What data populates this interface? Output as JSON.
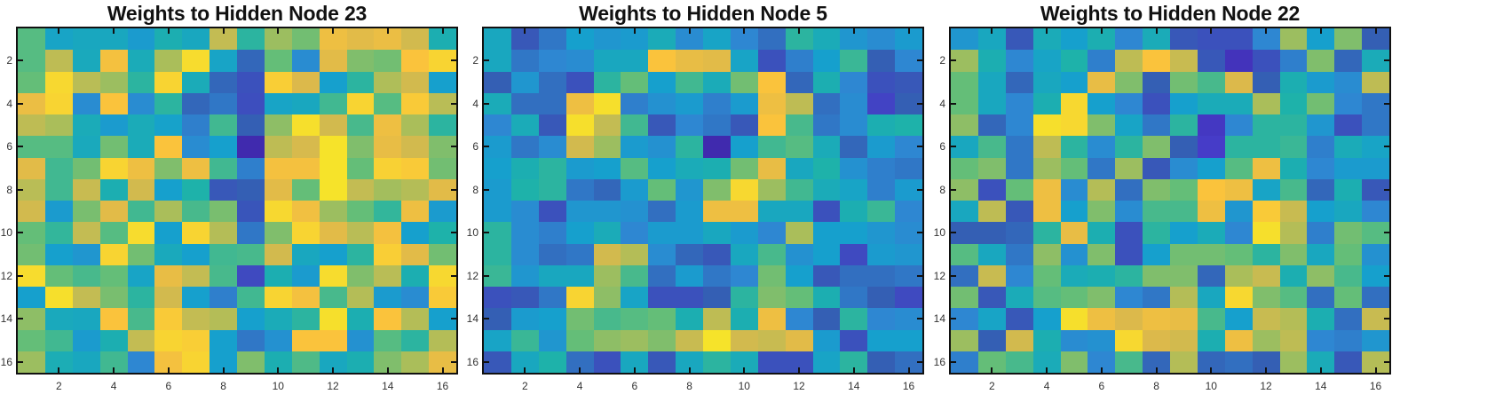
{
  "chart_data": [
    {
      "type": "heatmap",
      "title": "Weights to Hidden Node 23",
      "xlabel": "",
      "ylabel": "",
      "x_ticks": [
        2,
        4,
        6,
        8,
        10,
        12,
        14,
        16
      ],
      "y_ticks": [
        2,
        4,
        6,
        8,
        10,
        12,
        14,
        16
      ],
      "rows": 16,
      "cols": 16,
      "colormap": "parula",
      "value_range": [
        0,
        1
      ],
      "note": "Values are approximate visual estimates mapped to a 0-1 parula scale.",
      "values": [
        [
          0.58,
          0.42,
          0.44,
          0.44,
          0.38,
          0.48,
          0.44,
          0.75,
          0.52,
          0.68,
          0.62,
          0.86,
          0.82,
          0.85,
          0.78,
          0.48
        ],
        [
          0.58,
          0.74,
          0.45,
          0.88,
          0.46,
          0.7,
          0.97,
          0.42,
          0.22,
          0.6,
          0.32,
          0.82,
          0.64,
          0.62,
          0.9,
          0.95
        ],
        [
          0.6,
          0.96,
          0.73,
          0.68,
          0.52,
          0.95,
          0.46,
          0.22,
          0.16,
          0.93,
          0.8,
          0.4,
          0.52,
          0.71,
          0.78,
          0.4
        ],
        [
          0.85,
          0.95,
          0.32,
          0.9,
          0.32,
          0.52,
          0.22,
          0.26,
          0.15,
          0.42,
          0.44,
          0.55,
          0.95,
          0.58,
          0.92,
          0.73
        ],
        [
          0.74,
          0.7,
          0.46,
          0.38,
          0.46,
          0.41,
          0.28,
          0.55,
          0.2,
          0.66,
          0.98,
          0.78,
          0.56,
          0.86,
          0.7,
          0.52
        ],
        [
          0.58,
          0.58,
          0.45,
          0.62,
          0.46,
          0.9,
          0.32,
          0.4,
          0.02,
          0.74,
          0.79,
          0.99,
          0.64,
          0.84,
          0.78,
          0.64
        ],
        [
          0.82,
          0.55,
          0.62,
          0.95,
          0.86,
          0.64,
          0.86,
          0.55,
          0.28,
          0.88,
          0.88,
          0.99,
          0.6,
          0.94,
          0.92,
          0.62
        ],
        [
          0.73,
          0.55,
          0.76,
          0.48,
          0.78,
          0.4,
          0.5,
          0.18,
          0.2,
          0.82,
          0.6,
          0.99,
          0.75,
          0.69,
          0.72,
          0.82
        ],
        [
          0.78,
          0.38,
          0.63,
          0.82,
          0.55,
          0.7,
          0.56,
          0.63,
          0.17,
          0.96,
          0.87,
          0.68,
          0.6,
          0.53,
          0.86,
          0.38
        ],
        [
          0.6,
          0.53,
          0.75,
          0.58,
          0.97,
          0.4,
          0.95,
          0.72,
          0.26,
          0.64,
          0.95,
          0.82,
          0.73,
          0.88,
          0.4,
          0.5
        ],
        [
          0.62,
          0.4,
          0.36,
          0.95,
          0.62,
          0.45,
          0.4,
          0.55,
          0.56,
          0.78,
          0.44,
          0.4,
          0.52,
          0.93,
          0.82,
          0.62
        ],
        [
          0.97,
          0.6,
          0.56,
          0.6,
          0.42,
          0.84,
          0.75,
          0.56,
          0.14,
          0.48,
          0.38,
          0.97,
          0.64,
          0.73,
          0.48,
          0.96
        ],
        [
          0.4,
          0.98,
          0.75,
          0.63,
          0.52,
          0.78,
          0.4,
          0.28,
          0.55,
          0.95,
          0.88,
          0.56,
          0.72,
          0.38,
          0.32,
          0.92
        ],
        [
          0.66,
          0.45,
          0.44,
          0.9,
          0.56,
          0.92,
          0.75,
          0.72,
          0.4,
          0.46,
          0.52,
          0.98,
          0.48,
          0.9,
          0.72,
          0.4
        ],
        [
          0.6,
          0.55,
          0.38,
          0.48,
          0.75,
          0.95,
          0.93,
          0.4,
          0.26,
          0.34,
          0.9,
          0.9,
          0.34,
          0.58,
          0.52,
          0.72
        ],
        [
          0.68,
          0.47,
          0.44,
          0.55,
          0.3,
          0.88,
          0.95,
          0.4,
          0.64,
          0.48,
          0.57,
          0.44,
          0.48,
          0.64,
          0.7,
          0.84
        ]
      ]
    },
    {
      "type": "heatmap",
      "title": "Weights to Hidden Node 5",
      "xlabel": "",
      "ylabel": "",
      "x_ticks": [
        2,
        4,
        6,
        8,
        10,
        12,
        14,
        16
      ],
      "y_ticks": [
        2,
        4,
        6,
        8,
        10,
        12,
        14,
        16
      ],
      "rows": 16,
      "cols": 16,
      "colormap": "parula",
      "value_range": [
        0,
        1
      ],
      "note": "Values are approximate visual estimates mapped to a 0-1 parula scale. Rightmost columns (approx. 14-16) are lower-confidence due to inconsistent zoom inspection of that region.",
      "values": [
        [
          0.44,
          0.18,
          0.26,
          0.4,
          0.36,
          0.38,
          0.46,
          0.32,
          0.42,
          0.3,
          0.24,
          0.52,
          0.46,
          0.36,
          0.32,
          0.38
        ],
        [
          0.44,
          0.26,
          0.3,
          0.32,
          0.44,
          0.44,
          0.9,
          0.84,
          0.82,
          0.42,
          0.16,
          0.28,
          0.4,
          0.54,
          0.2,
          0.3
        ],
        [
          0.2,
          0.36,
          0.24,
          0.16,
          0.52,
          0.6,
          0.4,
          0.55,
          0.46,
          0.62,
          0.9,
          0.22,
          0.48,
          0.3,
          0.16,
          0.18
        ],
        [
          0.46,
          0.24,
          0.24,
          0.86,
          0.98,
          0.28,
          0.34,
          0.38,
          0.28,
          0.38,
          0.86,
          0.74,
          0.24,
          0.32,
          0.12,
          0.2
        ],
        [
          0.3,
          0.46,
          0.18,
          0.98,
          0.75,
          0.55,
          0.18,
          0.3,
          0.26,
          0.18,
          0.9,
          0.56,
          0.26,
          0.32,
          0.48,
          0.5
        ],
        [
          0.38,
          0.26,
          0.32,
          0.78,
          0.68,
          0.38,
          0.34,
          0.52,
          0.02,
          0.4,
          0.55,
          0.58,
          0.46,
          0.22,
          0.38,
          0.3
        ],
        [
          0.4,
          0.48,
          0.52,
          0.38,
          0.4,
          0.58,
          0.4,
          0.46,
          0.48,
          0.62,
          0.84,
          0.44,
          0.5,
          0.34,
          0.28,
          0.26
        ],
        [
          0.38,
          0.5,
          0.52,
          0.26,
          0.22,
          0.38,
          0.6,
          0.36,
          0.64,
          0.96,
          0.68,
          0.55,
          0.46,
          0.42,
          0.28,
          0.38
        ],
        [
          0.38,
          0.32,
          0.16,
          0.36,
          0.36,
          0.34,
          0.24,
          0.38,
          0.86,
          0.86,
          0.44,
          0.44,
          0.16,
          0.48,
          0.54,
          0.3
        ],
        [
          0.52,
          0.32,
          0.28,
          0.4,
          0.46,
          0.3,
          0.38,
          0.38,
          0.44,
          0.38,
          0.3,
          0.7,
          0.4,
          0.4,
          0.36,
          0.32
        ],
        [
          0.52,
          0.32,
          0.24,
          0.26,
          0.78,
          0.72,
          0.32,
          0.22,
          0.18,
          0.44,
          0.56,
          0.34,
          0.4,
          0.14,
          0.38,
          0.36
        ],
        [
          0.54,
          0.36,
          0.44,
          0.44,
          0.68,
          0.56,
          0.24,
          0.38,
          0.26,
          0.3,
          0.62,
          0.4,
          0.18,
          0.24,
          0.24,
          0.26
        ],
        [
          0.16,
          0.18,
          0.26,
          0.95,
          0.66,
          0.42,
          0.16,
          0.16,
          0.2,
          0.52,
          0.64,
          0.6,
          0.48,
          0.26,
          0.2,
          0.14
        ],
        [
          0.2,
          0.38,
          0.4,
          0.62,
          0.56,
          0.58,
          0.6,
          0.48,
          0.74,
          0.48,
          0.86,
          0.3,
          0.2,
          0.52,
          0.3,
          0.32
        ],
        [
          0.42,
          0.54,
          0.36,
          0.6,
          0.66,
          0.68,
          0.64,
          0.76,
          0.99,
          0.78,
          0.76,
          0.82,
          0.38,
          0.16,
          0.4,
          0.4
        ],
        [
          0.18,
          0.44,
          0.5,
          0.24,
          0.16,
          0.44,
          0.18,
          0.44,
          0.52,
          0.46,
          0.16,
          0.16,
          0.42,
          0.52,
          0.2,
          0.24
        ]
      ]
    },
    {
      "type": "heatmap",
      "title": "Weights to Hidden Node 22",
      "xlabel": "",
      "ylabel": "",
      "x_ticks": [
        2,
        4,
        6,
        8,
        10,
        12,
        14,
        16
      ],
      "y_ticks": [
        2,
        4,
        6,
        8,
        10,
        12,
        14,
        16
      ],
      "rows": 16,
      "cols": 16,
      "colormap": "parula",
      "value_range": [
        0,
        1
      ],
      "note": "Values are approximate visual estimates mapped to a 0-1 parula scale.",
      "values": [
        [
          0.36,
          0.44,
          0.18,
          0.46,
          0.4,
          0.48,
          0.3,
          0.46,
          0.18,
          0.16,
          0.16,
          0.3,
          0.68,
          0.4,
          0.64,
          0.2
        ],
        [
          0.68,
          0.48,
          0.3,
          0.42,
          0.5,
          0.28,
          0.74,
          0.9,
          0.76,
          0.18,
          0.06,
          0.16,
          0.28,
          0.64,
          0.22,
          0.46
        ],
        [
          0.6,
          0.44,
          0.22,
          0.44,
          0.4,
          0.84,
          0.64,
          0.2,
          0.62,
          0.56,
          0.8,
          0.2,
          0.48,
          0.38,
          0.32,
          0.74
        ],
        [
          0.6,
          0.44,
          0.3,
          0.48,
          0.96,
          0.4,
          0.3,
          0.16,
          0.4,
          0.46,
          0.46,
          0.7,
          0.5,
          0.62,
          0.3,
          0.26
        ],
        [
          0.66,
          0.22,
          0.3,
          0.98,
          0.96,
          0.64,
          0.42,
          0.26,
          0.52,
          0.08,
          0.3,
          0.52,
          0.52,
          0.36,
          0.16,
          0.26
        ],
        [
          0.44,
          0.56,
          0.26,
          0.74,
          0.52,
          0.32,
          0.52,
          0.64,
          0.2,
          0.1,
          0.52,
          0.52,
          0.54,
          0.28,
          0.46,
          0.42
        ],
        [
          0.6,
          0.64,
          0.26,
          0.68,
          0.6,
          0.26,
          0.68,
          0.18,
          0.32,
          0.4,
          0.58,
          0.86,
          0.48,
          0.3,
          0.38,
          0.38
        ],
        [
          0.66,
          0.16,
          0.6,
          0.86,
          0.32,
          0.72,
          0.24,
          0.64,
          0.6,
          0.9,
          0.86,
          0.42,
          0.56,
          0.22,
          0.48,
          0.18
        ],
        [
          0.44,
          0.74,
          0.18,
          0.86,
          0.4,
          0.64,
          0.32,
          0.56,
          0.56,
          0.86,
          0.36,
          0.92,
          0.76,
          0.4,
          0.44,
          0.3
        ],
        [
          0.2,
          0.2,
          0.22,
          0.52,
          0.84,
          0.48,
          0.16,
          0.52,
          0.4,
          0.46,
          0.3,
          0.98,
          0.72,
          0.28,
          0.62,
          0.58
        ],
        [
          0.58,
          0.44,
          0.26,
          0.66,
          0.34,
          0.64,
          0.16,
          0.4,
          0.62,
          0.62,
          0.6,
          0.52,
          0.64,
          0.44,
          0.6,
          0.34
        ],
        [
          0.24,
          0.76,
          0.3,
          0.6,
          0.46,
          0.48,
          0.52,
          0.64,
          0.64,
          0.22,
          0.7,
          0.76,
          0.48,
          0.66,
          0.56,
          0.4
        ],
        [
          0.62,
          0.18,
          0.46,
          0.58,
          0.6,
          0.64,
          0.3,
          0.26,
          0.72,
          0.44,
          0.96,
          0.64,
          0.58,
          0.24,
          0.6,
          0.24
        ],
        [
          0.3,
          0.42,
          0.18,
          0.4,
          0.98,
          0.86,
          0.8,
          0.86,
          0.84,
          0.56,
          0.4,
          0.76,
          0.72,
          0.48,
          0.24,
          0.76
        ],
        [
          0.68,
          0.2,
          0.78,
          0.48,
          0.32,
          0.34,
          0.96,
          0.8,
          0.78,
          0.48,
          0.86,
          0.68,
          0.74,
          0.3,
          0.28,
          0.36
        ],
        [
          0.28,
          0.6,
          0.56,
          0.46,
          0.64,
          0.3,
          0.56,
          0.22,
          0.72,
          0.22,
          0.24,
          0.2,
          0.68,
          0.46,
          0.18,
          0.72
        ]
      ]
    }
  ],
  "panels": [
    {
      "title": "Weights to Hidden Node 23"
    },
    {
      "title": "Weights to Hidden Node 5"
    },
    {
      "title": "Weights to Hidden Node 22"
    }
  ]
}
